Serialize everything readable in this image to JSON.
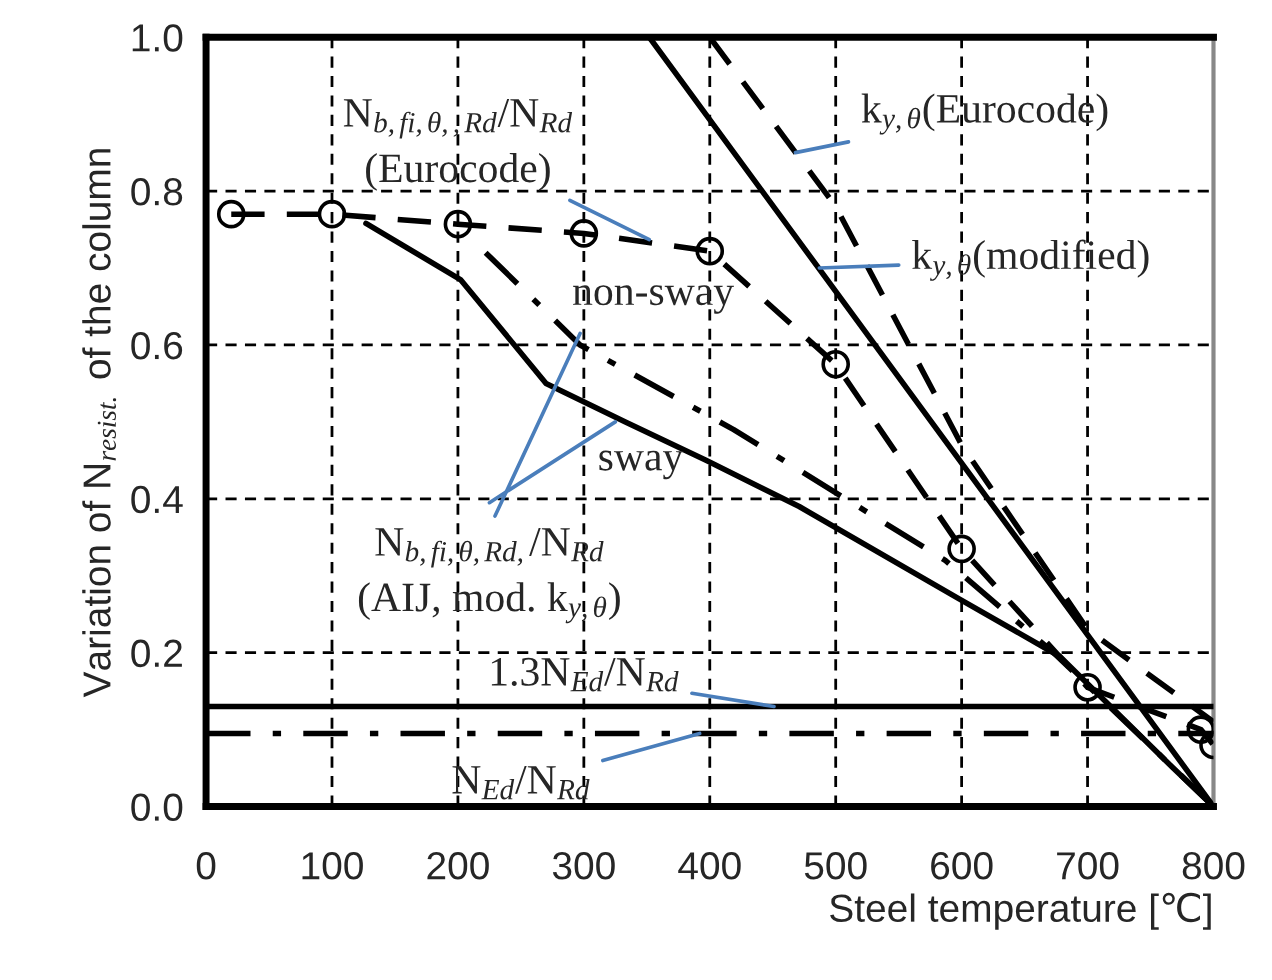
{
  "chart_data": {
    "type": "line",
    "xlabel": "Steel temperature [℃]",
    "ylabel": "Variation of N$_{resist.}$ of the column",
    "xlim": [
      0,
      800
    ],
    "ylim": [
      0,
      1.0
    ],
    "xticks": [
      0,
      100,
      200,
      300,
      400,
      500,
      600,
      700,
      800
    ],
    "yticks": [
      {
        "value": 0,
        "label": "0.0"
      },
      {
        "value": 0.2,
        "label": "0.2"
      },
      {
        "value": 0.4,
        "label": "0.4"
      },
      {
        "value": 0.6,
        "label": "0.6"
      },
      {
        "value": 0.8,
        "label": "0.8"
      },
      {
        "value": 1.0,
        "label": "1.0"
      }
    ],
    "grid": true,
    "legend": false,
    "series": [
      {
        "color": "#000000",
        "line_style": "dashed",
        "marker": "none",
        "x": [
          400,
          500,
          600,
          700,
          800
        ],
        "values": [
          1.0,
          0.78,
          0.47,
          0.23,
          0.11
        ]
      },
      {
        "color": "#000000",
        "line_style": "solid",
        "marker": "none",
        "x": [
          352,
          800
        ],
        "values": [
          1.0,
          0.0
        ]
      },
      {
        "color": "#000000",
        "line_style": "dashed",
        "marker": "circle",
        "x": [
          20,
          100,
          200,
          300,
          400,
          500,
          600,
          700,
          790,
          800
        ],
        "values": [
          0.77,
          0.77,
          0.757,
          0.745,
          0.722,
          0.575,
          0.335,
          0.155,
          0.1,
          0.08
        ]
      },
      {
        "color": "#000000",
        "line_style": "dashdot",
        "marker": "none",
        "x": [
          222,
          297,
          419,
          587,
          673,
          800
        ],
        "values": [
          0.72,
          0.6,
          0.49,
          0.32,
          0.2,
          0.0
        ]
      },
      {
        "color": "#000000",
        "line_style": "solid",
        "marker": "none",
        "x": [
          127,
          202,
          270,
          333,
          397,
          471,
          598,
          678,
          768,
          800
        ],
        "values": [
          0.758,
          0.685,
          0.55,
          0.5,
          0.45,
          0.39,
          0.27,
          0.195,
          0.05,
          0.0
        ]
      }
    ],
    "ref_lines": [
      {
        "axis": "y",
        "value": 0.13,
        "color": "#000000",
        "line_style": "solid"
      },
      {
        "axis": "y",
        "value": 0.095,
        "color": "#000000",
        "line_style": "dashdot"
      }
    ],
    "annotations": [
      {
        "text": "N$_{b,fi,θ,,Rd}$/N$_{Rd}$\n(Eurocode)",
        "x": 352,
        "y": 0.737
      },
      {
        "text": "k$_{y,θ}$(Eurocode)",
        "x": 468,
        "y": 0.85
      },
      {
        "text": "k$_{y,θ}$(modified)",
        "x": 487,
        "y": 0.7
      },
      "non-sway",
      {
        "text": "sway",
        "x": 325,
        "y": 0.5
      },
      {
        "text": "N$_{b,fi,θ,Rd,}$/N$_{Rd}$\n(AIJ, mod. k$_{y,θ}$)",
        "x": 297,
        "y": 0.615
      },
      {
        "text": "1.3N$_{Ed}$/N$_{Rd}$",
        "x": 451,
        "y": 0.13
      },
      {
        "text": "N$_{Ed}$/N$_{Rd}$",
        "x": 392,
        "y": 0.095
      }
    ]
  }
}
